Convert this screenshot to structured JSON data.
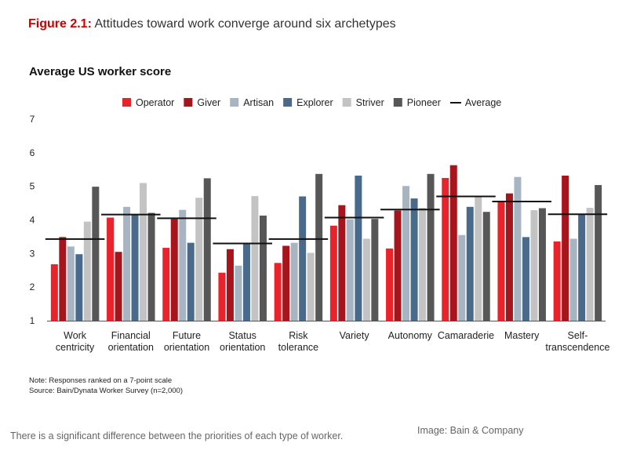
{
  "figure": {
    "number": "Figure 2.1:",
    "title": "Attitudes toward work converge around six archetypes"
  },
  "note": "Note: Responses ranked on a 7-point scale",
  "source": "Source: Bain/Dynata Worker Survey (n=2,000)",
  "caption": "There is a significant difference between the priorities of each type of worker.",
  "credit": "Image: Bain & Company",
  "chart_data": {
    "type": "bar",
    "title": "Average US worker score",
    "xlabel": "",
    "ylabel": "",
    "ylim": [
      1,
      7
    ],
    "yticks": [
      "1",
      "2",
      "3",
      "4",
      "5",
      "6",
      "7"
    ],
    "grid": false,
    "legend_position": "top",
    "categories": [
      [
        "Work",
        "centricity"
      ],
      [
        "Financial",
        "orientation"
      ],
      [
        "Future",
        "orientation"
      ],
      [
        "Status",
        "orientation"
      ],
      [
        "Risk",
        "tolerance"
      ],
      [
        "Variety"
      ],
      [
        "Autonomy"
      ],
      [
        "Camaraderie"
      ],
      [
        "Mastery"
      ],
      [
        "Self-",
        "transcendence"
      ]
    ],
    "series": [
      {
        "name": "Operator",
        "color": "#e8232b",
        "values": [
          2.68,
          4.07,
          3.17,
          2.43,
          2.72,
          3.83,
          3.15,
          5.25,
          4.55,
          3.36
        ]
      },
      {
        "name": "Giver",
        "color": "#a6151c",
        "values": [
          3.49,
          3.05,
          4.03,
          3.13,
          3.23,
          4.44,
          4.28,
          5.63,
          4.79,
          5.32
        ]
      },
      {
        "name": "Artisan",
        "color": "#a7b5c2",
        "values": [
          3.21,
          4.39,
          4.3,
          2.64,
          3.32,
          4.02,
          5.01,
          3.55,
          5.28,
          3.44
        ]
      },
      {
        "name": "Explorer",
        "color": "#4a6a8c",
        "values": [
          2.98,
          4.16,
          3.32,
          3.28,
          4.7,
          5.32,
          4.64,
          4.39,
          3.49,
          4.17
        ]
      },
      {
        "name": "Striver",
        "color": "#c3c3c3",
        "values": [
          3.95,
          5.1,
          4.66,
          4.71,
          3.02,
          3.44,
          4.36,
          4.69,
          4.29,
          4.36
        ]
      },
      {
        "name": "Pioneer",
        "color": "#575757",
        "values": [
          4.99,
          4.21,
          5.24,
          4.13,
          5.37,
          4.03,
          5.37,
          4.24,
          4.35,
          5.04
        ]
      }
    ],
    "average": {
      "name": "Average",
      "color": "#111111",
      "values": [
        3.43,
        4.16,
        4.05,
        3.3,
        3.43,
        4.07,
        4.31,
        4.7,
        4.55,
        4.17
      ]
    }
  }
}
